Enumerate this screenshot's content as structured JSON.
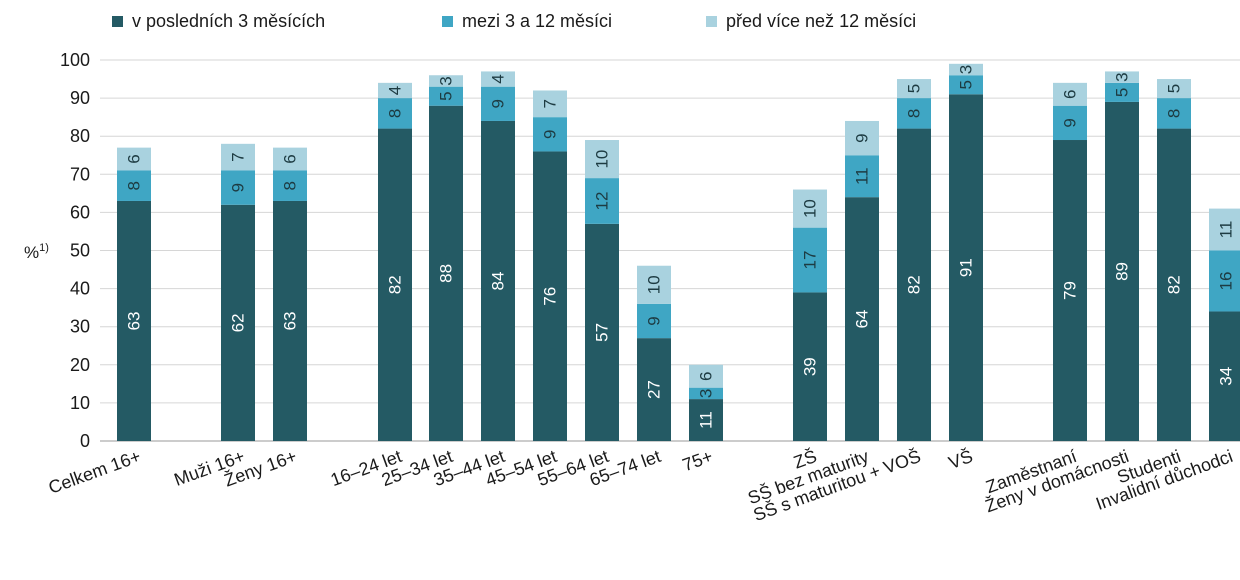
{
  "chart_data": {
    "type": "bar",
    "stacked": true,
    "ylabel": "%",
    "ylabel_superscript": "1)",
    "ylim": [
      0,
      100
    ],
    "yticks": [
      0,
      10,
      20,
      30,
      40,
      50,
      60,
      70,
      80,
      90,
      100
    ],
    "grid": true,
    "legend_position": "top",
    "categories": [
      "Celkem 16+",
      "Muži 16+",
      "Ženy 16+",
      "16–24 let",
      "25–34 let",
      "35–44 let",
      "45–54 let",
      "55–64 let",
      "65–74 let",
      "75+",
      "ZŠ",
      "SŠ bez maturity",
      "SŠ s maturitou + VOŠ",
      "VŠ",
      "Zaměstnaní",
      "Ženy v domácnosti",
      "Studenti",
      "Invalidní důchodci"
    ],
    "series": [
      {
        "name": "v posledních 3 měsících",
        "color": "#245a64",
        "values": [
          63,
          62,
          63,
          82,
          88,
          84,
          76,
          57,
          27,
          11,
          39,
          64,
          82,
          91,
          79,
          89,
          82,
          34
        ]
      },
      {
        "name": "mezi 3 a 12 měsíci",
        "color": "#3fa6c4",
        "values": [
          8,
          9,
          8,
          8,
          5,
          9,
          9,
          12,
          9,
          3,
          17,
          11,
          8,
          5,
          9,
          5,
          8,
          16
        ]
      },
      {
        "name": "před více než 12 měsíci",
        "color": "#a9d2df",
        "values": [
          6,
          7,
          6,
          4,
          3,
          4,
          7,
          10,
          10,
          6,
          10,
          9,
          5,
          3,
          6,
          3,
          5,
          11
        ]
      }
    ]
  }
}
